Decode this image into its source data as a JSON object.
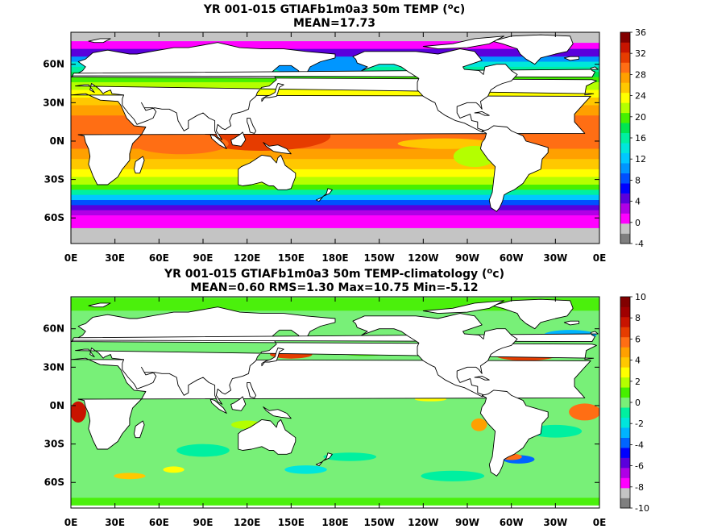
{
  "chart_data": [
    {
      "type": "heatmap",
      "title": "YR 001-015 GTIAFb1m0a3 50m TEMP (",
      "title_super": "o",
      "title_unit_tail": "c)",
      "subtitle": "MEAN=17.73",
      "x_tick_labels": [
        "0E",
        "30E",
        "60E",
        "90E",
        "120E",
        "150E",
        "180E",
        "150W",
        "120W",
        "90W",
        "60W",
        "30W",
        "0E"
      ],
      "y_tick_labels": [
        "60N",
        "30N",
        "0N",
        "30S",
        "60S"
      ],
      "y_tick_values": [
        60,
        30,
        0,
        -30,
        -60
      ],
      "xlim": [
        0,
        360
      ],
      "ylim": [
        -80,
        85
      ],
      "colorbar": {
        "tick_labels": [
          "36",
          "32",
          "28",
          "24",
          "20",
          "16",
          "12",
          "8",
          "4",
          "0",
          "-4"
        ],
        "levels": [
          -4,
          -2,
          0,
          2,
          4,
          6,
          8,
          10,
          12,
          14,
          16,
          18,
          20,
          22,
          24,
          26,
          28,
          30,
          32,
          34,
          36
        ],
        "colors": [
          "#7f7f7f",
          "#c4c4c4",
          "#ff00ff",
          "#b000e6",
          "#5a00dc",
          "#0000ff",
          "#0050ff",
          "#0096ff",
          "#00c8ff",
          "#00e6dc",
          "#00f0a0",
          "#00e650",
          "#46f000",
          "#b4ff00",
          "#ffff00",
          "#ffc800",
          "#ffa000",
          "#ff6e14",
          "#e63c00",
          "#c81400",
          "#820000"
        ]
      },
      "mean": 17.73
    },
    {
      "type": "heatmap",
      "title": "YR 001-015 GTIAFb1m0a3 50m TEMP-climatology (",
      "title_super": "o",
      "title_unit_tail": "c)",
      "subtitle": "MEAN=0.60   RMS=1.30   Max=10.75   Min=-5.12",
      "x_tick_labels": [
        "0E",
        "30E",
        "60E",
        "90E",
        "120E",
        "150E",
        "180E",
        "150W",
        "120W",
        "90W",
        "60W",
        "30W",
        "0E"
      ],
      "y_tick_labels": [
        "60N",
        "30N",
        "0N",
        "30S",
        "60S"
      ],
      "y_tick_values": [
        60,
        30,
        0,
        -30,
        -60
      ],
      "xlim": [
        0,
        360
      ],
      "ylim": [
        -80,
        85
      ],
      "colorbar": {
        "tick_labels": [
          "10",
          "8",
          "6",
          "4",
          "2",
          "0",
          "-2",
          "-4",
          "-6",
          "-8",
          "-10"
        ],
        "levels": [
          -10,
          -9,
          -8,
          -7,
          -6,
          -5,
          -4,
          -3,
          -2,
          -1,
          0,
          1,
          2,
          3,
          4,
          5,
          6,
          7,
          8,
          9,
          10
        ],
        "colors": [
          "#7f7f7f",
          "#c4c4c4",
          "#ff00ff",
          "#b000e6",
          "#5a00dc",
          "#0000ff",
          "#0064ff",
          "#00b4ff",
          "#00e6dc",
          "#00f0a0",
          "#78f078",
          "#46f000",
          "#b4ff00",
          "#ffff00",
          "#ffc800",
          "#ffa000",
          "#ff6e14",
          "#e63c00",
          "#c81400",
          "#a00000",
          "#820000"
        ]
      },
      "stats": {
        "mean": 0.6,
        "rms": 1.3,
        "max": 10.75,
        "min": -5.12
      }
    }
  ]
}
